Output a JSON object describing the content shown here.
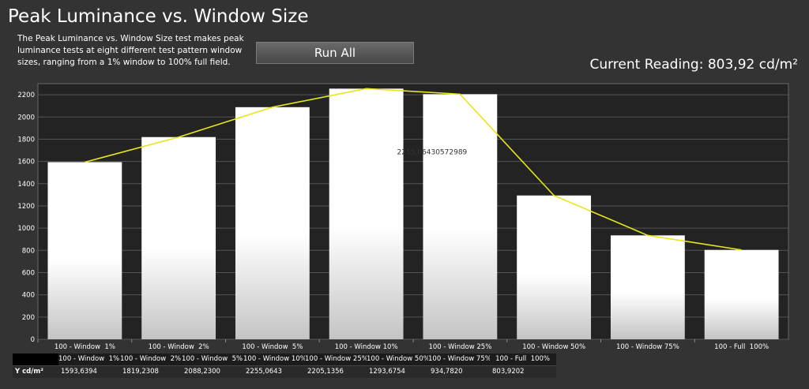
{
  "header": {
    "title": "Peak Luminance vs. Window Size",
    "description": "The Peak Luminance vs. Window Size test makes peak luminance tests at eight different test pattern window sizes, ranging from a 1% window to 100% full field.",
    "run_all_label": "Run All",
    "current_reading": "Current Reading: 803,92 cd/m²"
  },
  "chart_data": {
    "type": "bar",
    "categories": [
      "100 - Window  1%",
      "100 - Window  2%",
      "100 - Window  5%",
      "100 - Window 10%",
      "100 - Window 25%",
      "100 - Window 50%",
      "100 - Window 75%",
      "100 - Full  100%"
    ],
    "values": [
      1593.6394,
      1819.2308,
      2088.23,
      2255.0643,
      2205.1356,
      1293.6754,
      934.782,
      803.9202
    ],
    "yticks": [
      0,
      200,
      400,
      600,
      800,
      1000,
      1200,
      1400,
      1600,
      1800,
      2000,
      2200
    ],
    "ylim": [
      0,
      2300
    ],
    "line_values": [
      1593.6394,
      1819.2308,
      2088.23,
      2255.0643,
      2205.1356,
      1293.6754,
      934.782,
      803.9202
    ],
    "tooltip": "2255,06430572989",
    "grid": true,
    "colors": {
      "bar": "#ffffff",
      "line": "#e6e619",
      "plot_bg": "#232323",
      "grid": "#555555"
    }
  },
  "table": {
    "row_label": "Y cd/m²",
    "headers": [
      "100 - Window  1%",
      "100 - Window  2%",
      "100 - Window  5%",
      "100 - Window 10%",
      "100 - Window 25%",
      "100 - Window 50%",
      "100 - Window 75%",
      "100 - Full  100%"
    ],
    "values": [
      "1593,6394",
      "1819,2308",
      "2088,2300",
      "2255,0643",
      "2205,1356",
      "1293,6754",
      "934,7820",
      "803,9202"
    ]
  }
}
